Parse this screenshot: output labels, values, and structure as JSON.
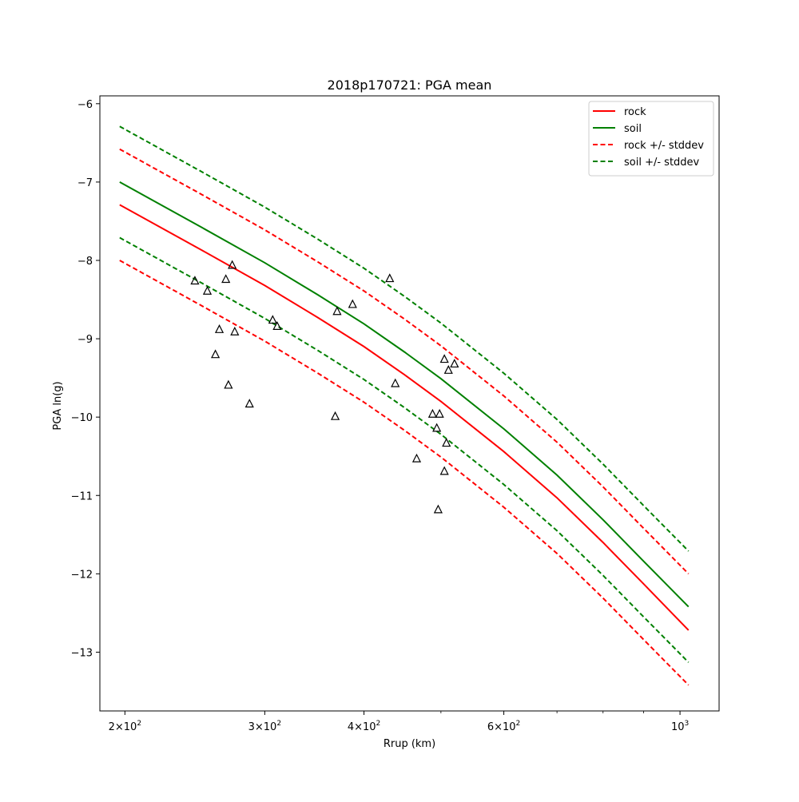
{
  "chart_data": {
    "type": "line",
    "title": "2018p170721: PGA mean",
    "xlabel": "Rrup (km)",
    "ylabel": "PGA ln(g)",
    "xscale": "log",
    "xlim": [
      186,
      1120
    ],
    "ylim": [
      -13.75,
      -5.9
    ],
    "grid": false,
    "legend_position": "top-right",
    "x_ticks": [
      {
        "value": 200,
        "base": "2×10",
        "exp": "2"
      },
      {
        "value": 300,
        "base": "3×10",
        "exp": "2"
      },
      {
        "value": 400,
        "base": "4×10",
        "exp": "2"
      },
      {
        "value": 600,
        "base": "6×10",
        "exp": "2"
      },
      {
        "value": 1000,
        "base": "10",
        "exp": "3"
      }
    ],
    "x_minor_ticks": [
      500,
      700,
      800,
      900
    ],
    "y_ticks": [
      {
        "value": -6,
        "label": "−6"
      },
      {
        "value": -7,
        "label": "−7"
      },
      {
        "value": -8,
        "label": "−8"
      },
      {
        "value": -9,
        "label": "−9"
      },
      {
        "value": -10,
        "label": "−10"
      },
      {
        "value": -11,
        "label": "−11"
      },
      {
        "value": -12,
        "label": "−12"
      },
      {
        "value": -13,
        "label": "−13"
      }
    ],
    "series": [
      {
        "name": "rock",
        "color": "#ff0000",
        "dash": false,
        "show_in_legend": true,
        "x": [
          197,
          250,
          300,
          350,
          400,
          450,
          500,
          600,
          700,
          800,
          900,
          1025
        ],
        "y": [
          -7.29,
          -7.87,
          -8.32,
          -8.73,
          -9.1,
          -9.46,
          -9.8,
          -10.44,
          -11.03,
          -11.6,
          -12.13,
          -12.72
        ]
      },
      {
        "name": "soil",
        "color": "#008000",
        "dash": false,
        "show_in_legend": true,
        "x": [
          197,
          250,
          300,
          350,
          400,
          450,
          500,
          600,
          700,
          800,
          900,
          1025
        ],
        "y": [
          -7.0,
          -7.58,
          -8.03,
          -8.44,
          -8.81,
          -9.17,
          -9.51,
          -10.15,
          -10.74,
          -11.31,
          -11.84,
          -12.42
        ]
      },
      {
        "name": "rock +/- stddev",
        "color": "#ff0000",
        "dash": true,
        "show_in_legend": true,
        "x": [
          197,
          250,
          300,
          350,
          400,
          450,
          500,
          600,
          700,
          800,
          900,
          1025
        ],
        "y": [
          -6.58,
          -7.16,
          -7.61,
          -8.02,
          -8.39,
          -8.75,
          -9.09,
          -9.73,
          -10.32,
          -10.89,
          -11.42,
          -12.0
        ]
      },
      {
        "name": "rock +/- stddev",
        "color": "#ff0000",
        "dash": true,
        "show_in_legend": false,
        "x": [
          197,
          250,
          300,
          350,
          400,
          450,
          500,
          600,
          700,
          800,
          900,
          1025
        ],
        "y": [
          -8.0,
          -8.58,
          -9.03,
          -9.44,
          -9.81,
          -10.17,
          -10.51,
          -11.15,
          -11.74,
          -12.31,
          -12.84,
          -13.42
        ]
      },
      {
        "name": "soil +/- stddev",
        "color": "#008000",
        "dash": true,
        "show_in_legend": true,
        "x": [
          197,
          250,
          300,
          350,
          400,
          450,
          500,
          600,
          700,
          800,
          900,
          1025
        ],
        "y": [
          -6.29,
          -6.87,
          -7.32,
          -7.73,
          -8.1,
          -8.46,
          -8.8,
          -9.44,
          -10.03,
          -10.6,
          -11.13,
          -11.71
        ]
      },
      {
        "name": "soil +/- stddev",
        "color": "#008000",
        "dash": true,
        "show_in_legend": false,
        "x": [
          197,
          250,
          300,
          350,
          400,
          450,
          500,
          600,
          700,
          800,
          900,
          1025
        ],
        "y": [
          -7.71,
          -8.29,
          -8.74,
          -9.15,
          -9.52,
          -9.88,
          -10.22,
          -10.86,
          -11.45,
          -12.02,
          -12.55,
          -13.13
        ]
      }
    ],
    "observations": {
      "marker": "triangle",
      "color": "#000000",
      "points": [
        [
          245,
          -8.26
        ],
        [
          254,
          -8.39
        ],
        [
          260,
          -9.2
        ],
        [
          263,
          -8.88
        ],
        [
          268,
          -8.24
        ],
        [
          270,
          -9.59
        ],
        [
          273,
          -8.06
        ],
        [
          275,
          -8.91
        ],
        [
          287,
          -9.83
        ],
        [
          307,
          -8.76
        ],
        [
          311,
          -8.84
        ],
        [
          368,
          -9.99
        ],
        [
          370,
          -8.65
        ],
        [
          387,
          -8.56
        ],
        [
          431,
          -8.23
        ],
        [
          438,
          -9.57
        ],
        [
          466,
          -10.53
        ],
        [
          488,
          -9.96
        ],
        [
          494,
          -10.14
        ],
        [
          498,
          -9.96
        ],
        [
          496,
          -11.18
        ],
        [
          505,
          -9.26
        ],
        [
          505,
          -10.69
        ],
        [
          508,
          -10.33
        ],
        [
          511,
          -9.4
        ],
        [
          520,
          -9.32
        ]
      ]
    }
  }
}
